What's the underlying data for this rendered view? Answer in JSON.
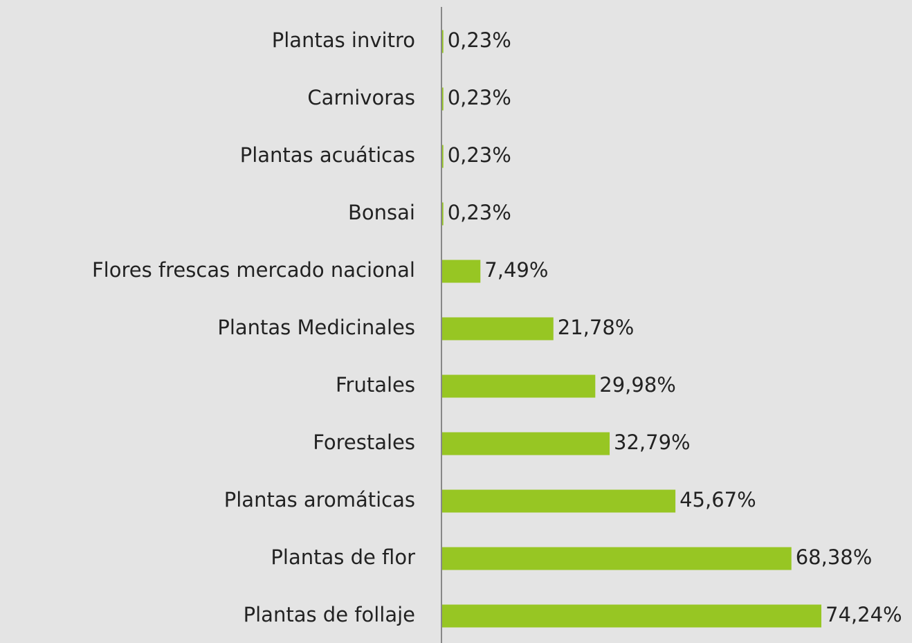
{
  "chart_data": {
    "type": "bar",
    "orientation": "horizontal",
    "categories": [
      "Plantas invitro",
      "Carnivoras",
      "Plantas acuáticas",
      "Bonsai",
      "Flores frescas mercado nacional",
      "Plantas Medicinales",
      "Frutales",
      "Forestales",
      "Plantas aromáticas",
      "Plantas de flor",
      "Plantas de follaje"
    ],
    "values": [
      0.23,
      0.23,
      0.23,
      0.23,
      7.49,
      21.78,
      29.98,
      32.79,
      45.67,
      68.38,
      74.24
    ],
    "value_labels": [
      "0,23%",
      "0,23%",
      "0,23%",
      "0,23%",
      "7,49%",
      "21,78%",
      "29,98%",
      "32,79%",
      "45,67%",
      "68,38%",
      "74,24%"
    ],
    "color": "#97c623"
  }
}
